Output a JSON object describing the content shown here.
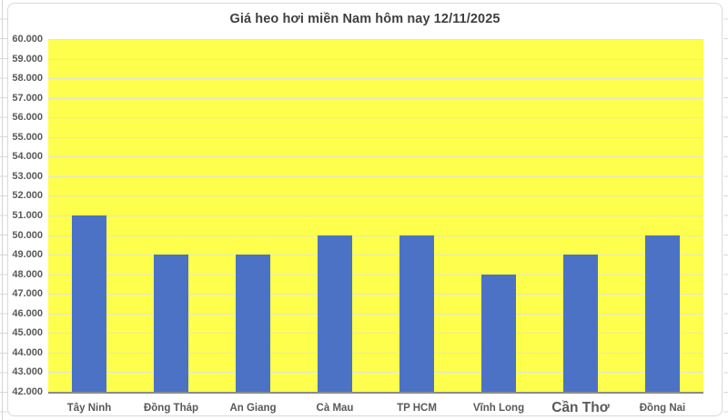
{
  "chart_data": {
    "type": "bar",
    "title": "Giá heo hơi miền Nam hôm nay 12/11/2025",
    "categories": [
      "Tây Ninh",
      "Đồng Tháp",
      "An Giang",
      "Cà Mau",
      "TP HCM",
      "Vĩnh Long",
      "Cần Thơ",
      "Đồng Nai"
    ],
    "values": [
      51000,
      49000,
      49000,
      50000,
      50000,
      48000,
      49000,
      50000
    ],
    "xlabel": "",
    "ylabel": "",
    "ylim": [
      42000,
      60000
    ],
    "ytick_step": 1000,
    "ytick_labels_top_to_bottom": [
      "60.000",
      "59.000",
      "58.000",
      "57.000",
      "56.000",
      "55.000",
      "54.000",
      "53.000",
      "52.000",
      "51.000",
      "50.000",
      "49.000",
      "48.000",
      "47.000",
      "46.000",
      "45.000",
      "44.000",
      "43.000",
      "42.000"
    ],
    "grid": true,
    "legend": false,
    "emphasized_category": "Cần Thơ"
  },
  "colors": {
    "bar": "#4C72C6",
    "plot_background": "#FEFE4C",
    "gridline": "#E0E5D8",
    "axis_line": "#8B8B8B",
    "axis_text": "#595959",
    "title_text": "#3F3F3F",
    "chart_border": "#D9D9D9"
  }
}
